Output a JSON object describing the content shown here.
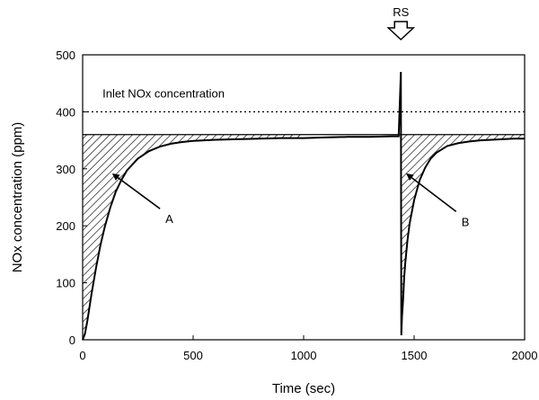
{
  "chart_data": {
    "type": "line",
    "title": "",
    "xlabel": "Time (sec)",
    "ylabel": "NOx concentration (ppm)",
    "xlim": [
      0,
      2000
    ],
    "ylim": [
      0,
      500
    ],
    "xticks": [
      0,
      500,
      1000,
      1500,
      2000
    ],
    "yticks": [
      0,
      100,
      200,
      300,
      400,
      500
    ],
    "grid": false,
    "series": [
      {
        "x": [
          0,
          10,
          20,
          30,
          40,
          60,
          80,
          100,
          125,
          150,
          175,
          200,
          250,
          300,
          350,
          400,
          450,
          500,
          600,
          700,
          800,
          900,
          1000,
          1100,
          1200,
          1300,
          1400,
          1430,
          1440,
          1442,
          1445,
          1450,
          1455,
          1460,
          1470,
          1480,
          1500,
          1525,
          1550,
          1575,
          1600,
          1650,
          1700,
          1750,
          1800,
          1850,
          1900,
          1950,
          2000
        ],
        "values": [
          0,
          10,
          30,
          55,
          80,
          125,
          165,
          198,
          232,
          260,
          280,
          297,
          318,
          331,
          339,
          344,
          347,
          349,
          351,
          352,
          353,
          354,
          354,
          355,
          356,
          356,
          357,
          357,
          470,
          8,
          40,
          70,
          110,
          135,
          175,
          205,
          245,
          280,
          302,
          318,
          328,
          340,
          345,
          348,
          350,
          351,
          352,
          353,
          353
        ]
      }
    ],
    "reference_lines": [
      {
        "y": 400,
        "style": "dotted",
        "label": "Inlet NOx concentration"
      },
      {
        "y": 360,
        "style": "solid"
      }
    ],
    "annotations": [
      {
        "text": "A",
        "arrow_from": [
          350,
          230
        ],
        "arrow_to": [
          140,
          290
        ]
      },
      {
        "text": "B",
        "arrow_from": [
          1690,
          225
        ],
        "arrow_to": [
          1470,
          290
        ]
      },
      {
        "text": "RS",
        "marker": "down-arrow",
        "x": 1440
      }
    ],
    "colors": {
      "line": "#000000",
      "axes": "#000000",
      "hatch": "#000000"
    }
  }
}
